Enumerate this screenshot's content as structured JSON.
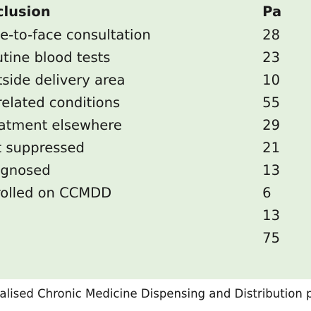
{
  "table": {
    "header": {
      "label": "Exclusion",
      "value": "Pa"
    },
    "rows": [
      {
        "label": "Face-to-face consultation",
        "value": "28"
      },
      {
        "label": "Routine blood tests",
        "value": "23"
      },
      {
        "label": "Outside delivery area",
        "value": "10"
      },
      {
        "label": "Unrelated conditions",
        "value": "55"
      },
      {
        "label": "Treatment elsewhere",
        "value": "29"
      },
      {
        "label": "Not suppressed",
        "value": "21"
      },
      {
        "label": "Diagnosed",
        "value": "13"
      },
      {
        "label": "Enrolled on CCMDD",
        "value": "6"
      },
      {
        "label": "",
        "value": "13"
      },
      {
        "label": "",
        "value": "75"
      }
    ]
  },
  "footnote": "Centralised Chronic Medicine Dispensing and Distribution programme"
}
